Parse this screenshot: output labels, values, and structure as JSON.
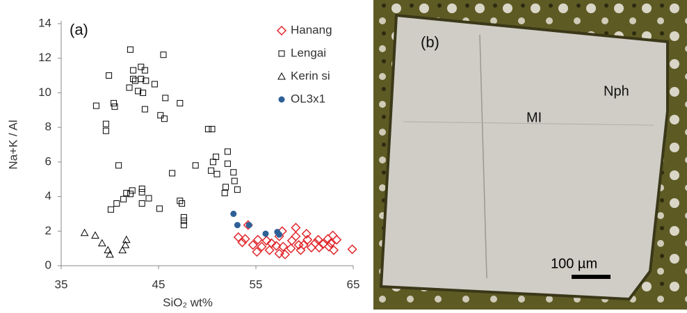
{
  "chart_data": {
    "type": "scatter",
    "panel_label": "(a)",
    "y_label": "Na+K / Al",
    "x_label": "SiO₂ wt%",
    "xlim": [
      35,
      65
    ],
    "xticks": [
      35,
      45,
      55,
      65
    ],
    "ylim": [
      0,
      14
    ],
    "yticks": [
      0,
      2,
      4,
      6,
      8,
      10,
      12,
      14
    ],
    "grid": false,
    "legend": "upper right",
    "series": [
      {
        "name": "Hanang",
        "color": "#e0262b",
        "marker": "diamond",
        "x": [
          54.2,
          53.2,
          53.6,
          53.9,
          55.2,
          55.6,
          55.1,
          56.1,
          56.6,
          56.4,
          57.1,
          57.4,
          57.7,
          57.8,
          57.4,
          58.0,
          58.7,
          59.1,
          59.4,
          59.1,
          58.6,
          59.6,
          59.9,
          60.3,
          60.2,
          60.7,
          61.4,
          61.5,
          61.9,
          62.4,
          62.9,
          62.7,
          63.0,
          63.3,
          62.5,
          64.9,
          54.7,
          61.1
        ],
        "values": [
          2.35,
          1.65,
          1.35,
          1.55,
          1.5,
          1.1,
          0.8,
          1.45,
          1.3,
          0.9,
          1.15,
          1.7,
          2.0,
          1.1,
          0.7,
          0.65,
          1.45,
          1.7,
          1.2,
          2.2,
          1.0,
          0.9,
          1.2,
          1.5,
          1.85,
          1.05,
          1.5,
          1.05,
          1.25,
          1.55,
          1.75,
          1.3,
          0.9,
          1.5,
          1.1,
          0.95,
          1.2,
          1.3
        ]
      },
      {
        "name": "Lengai",
        "color": "#000000",
        "marker": "square",
        "x": [
          42.1,
          45.5,
          39.9,
          43.2,
          43.6,
          42.4,
          42.4,
          42.6,
          43.2,
          43.7,
          44.6,
          42.0,
          42.9,
          43.4,
          45.7,
          40.4,
          38.6,
          40.5,
          43.6,
          47.2,
          39.6,
          39.6,
          45.2,
          45.6,
          50.1,
          50.5,
          50.9,
          50.6,
          52.1,
          52.1,
          40.9,
          48.8,
          46.4,
          50.4,
          51.0,
          52.7,
          52.8,
          53.1,
          51.9,
          51.8,
          43.3,
          43.3,
          42.3,
          41.7,
          42.1,
          41.4,
          40.7,
          40.1,
          44.0,
          43.3,
          47.2,
          47.4,
          45.1,
          47.6,
          47.6,
          47.6
        ],
        "values": [
          12.5,
          12.2,
          11.0,
          11.5,
          11.3,
          11.3,
          10.8,
          10.7,
          10.8,
          10.7,
          10.5,
          10.3,
          10.1,
          10.0,
          9.7,
          9.4,
          9.25,
          9.2,
          9.05,
          9.4,
          8.2,
          7.8,
          8.7,
          8.5,
          7.9,
          7.9,
          6.3,
          6.0,
          6.6,
          5.9,
          5.8,
          5.8,
          5.35,
          5.5,
          5.3,
          5.4,
          4.9,
          4.4,
          4.55,
          4.2,
          4.45,
          4.25,
          4.35,
          4.2,
          4.15,
          3.85,
          3.6,
          3.25,
          3.9,
          3.6,
          3.75,
          3.6,
          3.3,
          2.8,
          2.6,
          2.35
        ]
      },
      {
        "name": "Kerin si",
        "color": "#000000",
        "marker": "triangle",
        "x": [
          37.4,
          38.5,
          39.2,
          39.8,
          40.0,
          41.3,
          41.7,
          41.6
        ],
        "values": [
          1.9,
          1.75,
          1.3,
          0.9,
          0.65,
          0.9,
          1.5,
          1.2
        ]
      },
      {
        "name": "OL3x1",
        "color": "#2e6096",
        "marker": "circle",
        "x": [
          52.7,
          53.1,
          54.3,
          56.0,
          57.2,
          57.4
        ],
        "values": [
          3.0,
          2.35,
          2.35,
          1.85,
          1.95,
          1.8
        ]
      }
    ]
  },
  "photo": {
    "panel_label": "(b)",
    "labels": [
      "MI",
      "Nph"
    ],
    "scale_bar": "100 µm"
  }
}
